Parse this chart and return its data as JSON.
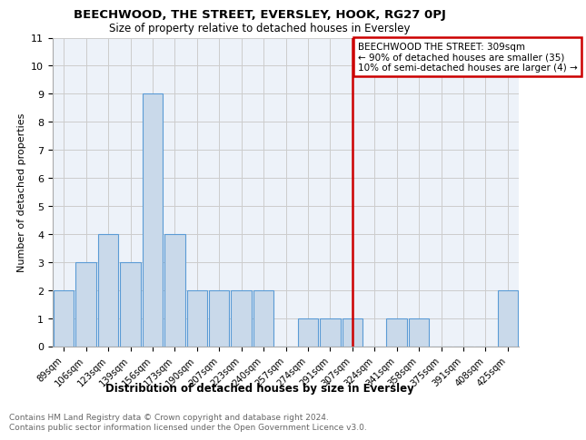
{
  "title": "BEECHWOOD, THE STREET, EVERSLEY, HOOK, RG27 0PJ",
  "subtitle": "Size of property relative to detached houses in Eversley",
  "xlabel": "Distribution of detached houses by size in Eversley",
  "ylabel": "Number of detached properties",
  "bar_labels": [
    "89sqm",
    "106sqm",
    "123sqm",
    "139sqm",
    "156sqm",
    "173sqm",
    "190sqm",
    "207sqm",
    "223sqm",
    "240sqm",
    "257sqm",
    "274sqm",
    "291sqm",
    "307sqm",
    "324sqm",
    "341sqm",
    "358sqm",
    "375sqm",
    "391sqm",
    "408sqm",
    "425sqm"
  ],
  "bar_values": [
    2,
    3,
    4,
    3,
    9,
    4,
    2,
    2,
    2,
    2,
    0,
    1,
    1,
    1,
    0,
    1,
    1,
    0,
    0,
    0,
    2
  ],
  "bar_color": "#c9d9ea",
  "bar_edge_color": "#5b9bd5",
  "subject_line_color": "#cc0000",
  "annotation_text": "BEECHWOOD THE STREET: 309sqm\n← 90% of detached houses are smaller (35)\n10% of semi-detached houses are larger (4) →",
  "annotation_box_color": "#cc0000",
  "ylim": [
    0,
    11
  ],
  "yticks": [
    0,
    1,
    2,
    3,
    4,
    5,
    6,
    7,
    8,
    9,
    10,
    11
  ],
  "grid_color": "#cccccc",
  "bg_color": "#edf2f9",
  "footer_line1": "Contains HM Land Registry data © Crown copyright and database right 2024.",
  "footer_line2": "Contains public sector information licensed under the Open Government Licence v3.0."
}
